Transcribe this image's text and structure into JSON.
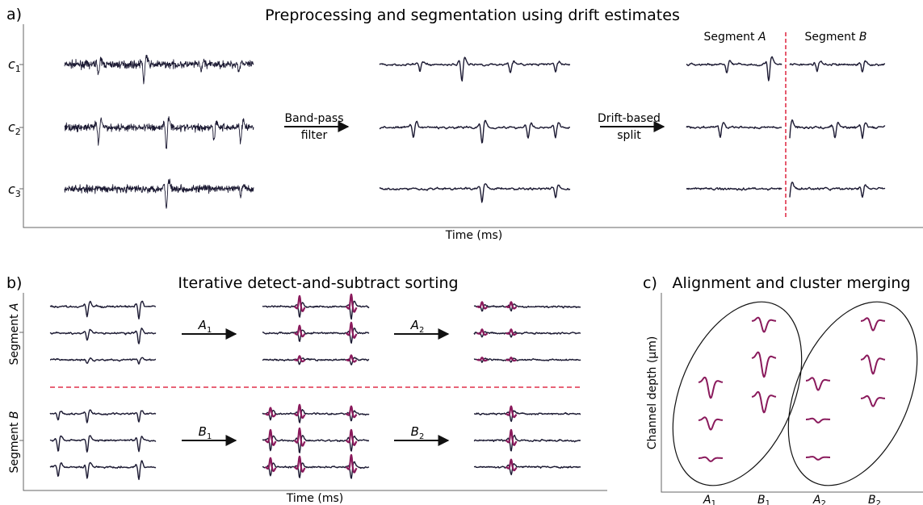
{
  "panel_a": {
    "letter": "a)",
    "title": "Preprocessing and segmentation using drift estimates",
    "channels": [
      {
        "base": "c",
        "sub": "1"
      },
      {
        "base": "c",
        "sub": "2"
      },
      {
        "base": "c",
        "sub": "3"
      }
    ],
    "arrow1": [
      "Band-pass",
      "filter"
    ],
    "arrow2": [
      "Drift-based",
      "split"
    ],
    "segment_a": {
      "prefix": "Segment ",
      "var": "A"
    },
    "segment_b": {
      "prefix": "Segment ",
      "var": "B"
    },
    "xlabel": "Time (ms)"
  },
  "panel_b": {
    "letter": "b)",
    "title": "Iterative detect-and-subtract sorting",
    "ylabel_a": {
      "prefix": "Segment ",
      "var": "A"
    },
    "ylabel_b": {
      "prefix": "Segment ",
      "var": "B"
    },
    "steps_a": [
      {
        "base": "A",
        "sub": "1"
      },
      {
        "base": "A",
        "sub": "2"
      }
    ],
    "steps_b": [
      {
        "base": "B",
        "sub": "1"
      },
      {
        "base": "B",
        "sub": "2"
      }
    ],
    "xlabel": "Time (ms)"
  },
  "panel_c": {
    "letter": "c)",
    "title": "Alignment and cluster merging",
    "ylabel": "Channel depth (µm)",
    "xticks": [
      {
        "base": "A",
        "sub": "1"
      },
      {
        "base": "B",
        "sub": "1"
      },
      {
        "base": "A",
        "sub": "2"
      },
      {
        "base": "B",
        "sub": "2"
      }
    ]
  },
  "colors": {
    "trace": "#1c1a33",
    "highlight": "#8a1a5c",
    "divider": "#e0314a",
    "axis": "#666666"
  }
}
